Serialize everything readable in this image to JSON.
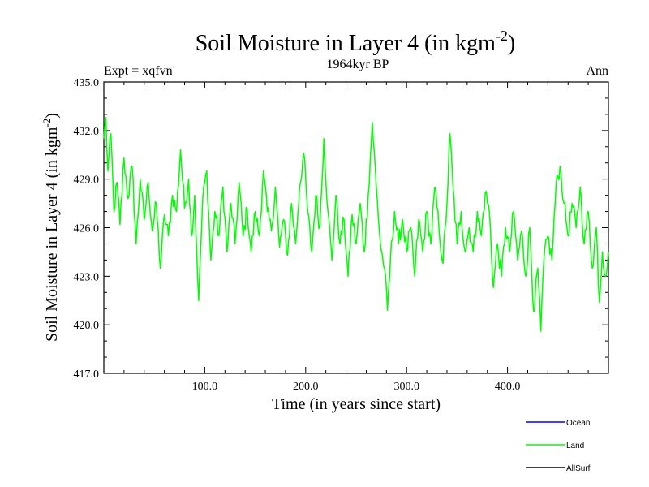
{
  "chart_data": {
    "type": "line",
    "title": "Soil Moisture in Layer 4 (in kgm",
    "title_sup": "-2",
    "title_close": ")",
    "subtitle_left": "Expt = xqfvn",
    "subtitle_center": "1964kyr BP",
    "subtitle_right": "Ann",
    "xlabel": "Time (in years since start)",
    "ylabel": "Soil Moisture in Layer 4 (in kgm",
    "ylabel_sup": "-2",
    "ylabel_close": ")",
    "xlim": [
      0,
      500
    ],
    "ylim": [
      417,
      435
    ],
    "x_ticks": [
      {
        "value": 100,
        "label": "100.0"
      },
      {
        "value": 200,
        "label": "200.0"
      },
      {
        "value": 300,
        "label": "300.0"
      },
      {
        "value": 400,
        "label": "400.0"
      }
    ],
    "y_ticks": [
      {
        "value": 417,
        "label": "417.0"
      },
      {
        "value": 420,
        "label": "420.0"
      },
      {
        "value": 423,
        "label": "423.0"
      },
      {
        "value": 426,
        "label": "426.0"
      },
      {
        "value": 429,
        "label": "429.0"
      },
      {
        "value": 432,
        "label": "432.0"
      },
      {
        "value": 435,
        "label": "435.0"
      }
    ],
    "x_minor_step": 20,
    "y_minor_step": 1,
    "legend": [
      {
        "name": "Ocean",
        "color": "#0000ff"
      },
      {
        "name": "Land",
        "color": "#00ff00"
      },
      {
        "name": "AllSurf",
        "color": "#000000"
      }
    ],
    "series": [
      {
        "name": "Land",
        "color": "#00ff00",
        "anchors": [
          [
            0,
            431.5
          ],
          [
            2,
            432.8
          ],
          [
            4,
            429.5
          ],
          [
            7,
            431.8
          ],
          [
            10,
            427.0
          ],
          [
            13,
            428.8
          ],
          [
            16,
            426.2
          ],
          [
            20,
            430.3
          ],
          [
            24,
            427.8
          ],
          [
            28,
            429.8
          ],
          [
            32,
            425.0
          ],
          [
            36,
            429.0
          ],
          [
            40,
            426.5
          ],
          [
            44,
            428.8
          ],
          [
            48,
            425.8
          ],
          [
            52,
            427.5
          ],
          [
            56,
            423.5
          ],
          [
            60,
            426.8
          ],
          [
            64,
            425.5
          ],
          [
            68,
            428.0
          ],
          [
            72,
            427.0
          ],
          [
            76,
            430.8
          ],
          [
            80,
            427.2
          ],
          [
            84,
            429.0
          ],
          [
            87,
            425.5
          ],
          [
            90,
            428.0
          ],
          [
            94,
            421.5
          ],
          [
            98,
            427.8
          ],
          [
            102,
            429.5
          ],
          [
            106,
            424.0
          ],
          [
            110,
            427.0
          ],
          [
            114,
            425.5
          ],
          [
            118,
            428.5
          ],
          [
            122,
            424.5
          ],
          [
            126,
            427.5
          ],
          [
            130,
            425.0
          ],
          [
            134,
            428.8
          ],
          [
            138,
            425.5
          ],
          [
            142,
            427.2
          ],
          [
            146,
            424.5
          ],
          [
            150,
            427.0
          ],
          [
            154,
            425.5
          ],
          [
            158,
            429.5
          ],
          [
            162,
            427.0
          ],
          [
            166,
            425.8
          ],
          [
            170,
            428.5
          ],
          [
            174,
            424.8
          ],
          [
            178,
            426.5
          ],
          [
            182,
            424.3
          ],
          [
            186,
            427.5
          ],
          [
            190,
            425.0
          ],
          [
            194,
            428.5
          ],
          [
            198,
            430.6
          ],
          [
            202,
            427.0
          ],
          [
            206,
            424.5
          ],
          [
            210,
            428.0
          ],
          [
            214,
            426.0
          ],
          [
            218,
            431.5
          ],
          [
            222,
            427.0
          ],
          [
            226,
            424.0
          ],
          [
            230,
            428.0
          ],
          [
            234,
            425.0
          ],
          [
            238,
            426.5
          ],
          [
            242,
            423.0
          ],
          [
            246,
            426.8
          ],
          [
            250,
            425.0
          ],
          [
            254,
            427.5
          ],
          [
            258,
            424.5
          ],
          [
            262,
            428.0
          ],
          [
            266,
            432.5
          ],
          [
            270,
            428.5
          ],
          [
            274,
            425.0
          ],
          [
            278,
            423.5
          ],
          [
            281,
            420.9
          ],
          [
            284,
            424.0
          ],
          [
            288,
            427.0
          ],
          [
            292,
            425.0
          ],
          [
            296,
            426.5
          ],
          [
            300,
            424.5
          ],
          [
            304,
            426.0
          ],
          [
            308,
            423.0
          ],
          [
            312,
            426.5
          ],
          [
            316,
            424.5
          ],
          [
            320,
            427.0
          ],
          [
            324,
            425.0
          ],
          [
            328,
            428.5
          ],
          [
            332,
            426.0
          ],
          [
            336,
            423.8
          ],
          [
            340,
            427.5
          ],
          [
            343,
            431.8
          ],
          [
            346,
            428.5
          ],
          [
            350,
            425.0
          ],
          [
            354,
            427.0
          ],
          [
            358,
            424.5
          ],
          [
            362,
            426.0
          ],
          [
            366,
            424.5
          ],
          [
            370,
            427.0
          ],
          [
            374,
            425.5
          ],
          [
            378,
            428.2
          ],
          [
            382,
            427.0
          ],
          [
            386,
            422.3
          ],
          [
            390,
            425.0
          ],
          [
            394,
            423.0
          ],
          [
            398,
            426.0
          ],
          [
            402,
            424.5
          ],
          [
            406,
            427.0
          ],
          [
            410,
            424.0
          ],
          [
            414,
            425.8
          ],
          [
            418,
            423.0
          ],
          [
            422,
            426.0
          ],
          [
            426,
            420.8
          ],
          [
            430,
            423.5
          ],
          [
            433,
            419.6
          ],
          [
            436,
            424.0
          ],
          [
            440,
            425.5
          ],
          [
            444,
            424.0
          ],
          [
            448,
            428.5
          ],
          [
            452,
            429.8
          ],
          [
            456,
            427.5
          ],
          [
            460,
            425.5
          ],
          [
            464,
            427.5
          ],
          [
            468,
            426.0
          ],
          [
            472,
            428.5
          ],
          [
            476,
            425.0
          ],
          [
            480,
            427.0
          ],
          [
            484,
            423.5
          ],
          [
            488,
            426.0
          ],
          [
            491,
            421.4
          ],
          [
            494,
            424.5
          ],
          [
            497,
            423.0
          ],
          [
            500,
            424.5
          ]
        ]
      }
    ]
  }
}
